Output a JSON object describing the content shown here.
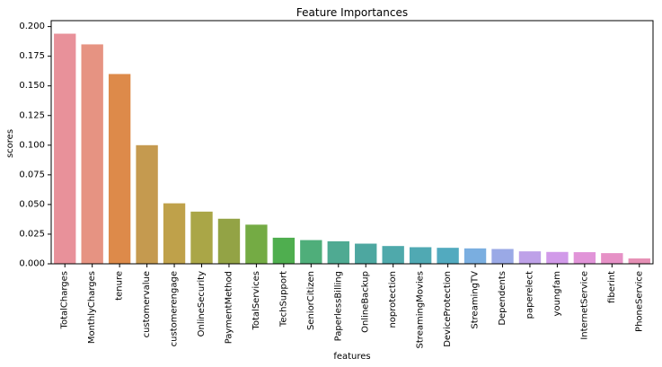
{
  "chart_data": {
    "type": "bar",
    "title": "Feature Importances",
    "xlabel": "features",
    "ylabel": "scores",
    "ylim": [
      0,
      0.205
    ],
    "yticks": [
      0.0,
      0.025,
      0.05,
      0.075,
      0.1,
      0.125,
      0.15,
      0.175,
      0.2
    ],
    "ytick_labels": [
      "0.000",
      "0.025",
      "0.050",
      "0.075",
      "0.100",
      "0.125",
      "0.150",
      "0.175",
      "0.200"
    ],
    "grid": false,
    "categories": [
      "TotalCharges",
      "MonthlyCharges",
      "tenure",
      "customervalue",
      "customerengage",
      "OnlineSecurity",
      "PaymentMethod",
      "TotalServices",
      "TechSupport",
      "SeniorCitizen",
      "PaperlessBilling",
      "OnlineBackup",
      "noprotection",
      "StreamingMovies",
      "DeviceProtection",
      "StreamingTV",
      "Dependents",
      "paperelect",
      "youngfam",
      "InternetService",
      "fiberint",
      "PhoneService"
    ],
    "values": [
      0.194,
      0.185,
      0.16,
      0.1,
      0.051,
      0.044,
      0.038,
      0.033,
      0.022,
      0.02,
      0.019,
      0.017,
      0.015,
      0.014,
      0.0135,
      0.013,
      0.0125,
      0.0105,
      0.01,
      0.0098,
      0.009,
      0.0045
    ],
    "colors": [
      "#e8919a",
      "#e69382",
      "#dd8a4a",
      "#c59a4f",
      "#bfa14a",
      "#aaa647",
      "#93a345",
      "#74ab44",
      "#4fae4f",
      "#4fae7a",
      "#4faa92",
      "#4da7a0",
      "#4fa9ab",
      "#50a9b3",
      "#52aabf",
      "#7aaee0",
      "#9aa9e6",
      "#bea1e8",
      "#d19ae9",
      "#e194d8",
      "#e691c6",
      "#e68fb5"
    ]
  }
}
